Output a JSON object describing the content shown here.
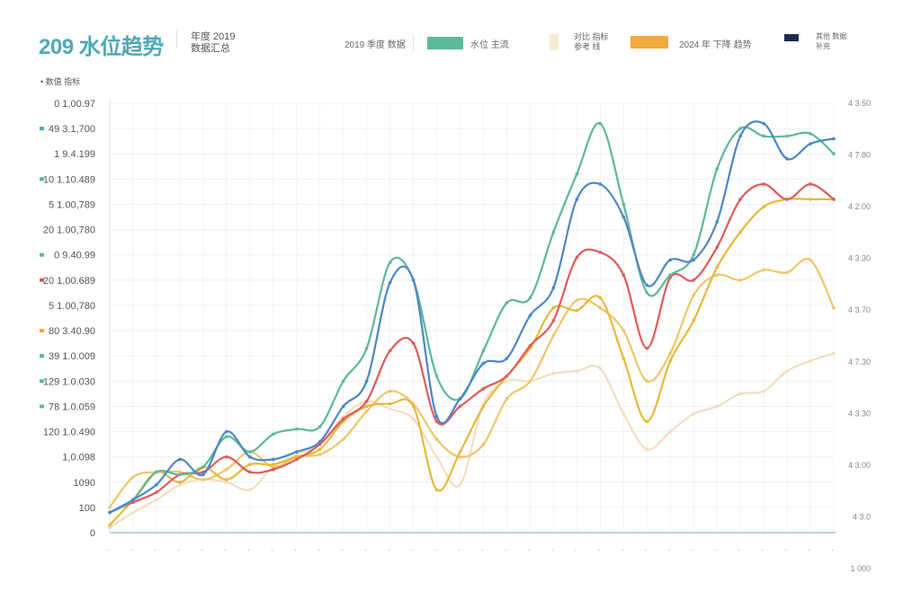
{
  "header": {
    "title": "209 水位趋势",
    "title_sub": "· · ·",
    "subtitle_line1": "年度 2019",
    "subtitle_line2": "数据汇总",
    "left_axis_title": "数值 指标"
  },
  "legend": [
    {
      "label": "2019 季度 数据",
      "color": "#ffffff"
    },
    {
      "label": "水位 主流",
      "color": "#5cb89a"
    },
    {
      "label": "对比 指标",
      "label2": "参考 线",
      "color": "#f6ecd0"
    },
    {
      "label": "2024 年 下降 趋势",
      "color": "#f2aa3b"
    },
    {
      "label": "其他 数据",
      "label2": "补充",
      "color": "#1f2a4a"
    }
  ],
  "chart_data": {
    "type": "line",
    "title": "",
    "xlabel": "",
    "ylabel": "",
    "ylim": [
      0,
      17
    ],
    "x": [
      1,
      2,
      3,
      4,
      5,
      6,
      7,
      8,
      9,
      10,
      11,
      12,
      13,
      14,
      15,
      16,
      17,
      18,
      19,
      20,
      21,
      22,
      23,
      24,
      25,
      26,
      27,
      28,
      29,
      30,
      31,
      32
    ],
    "x_tick_labels": [
      "·",
      "·",
      "·",
      "·",
      "·",
      "·",
      "·",
      "·",
      "·",
      "·",
      "·",
      "·",
      "·",
      "·",
      "·",
      "·",
      "·",
      "·",
      "·",
      "·",
      "·",
      "·",
      "·",
      "·",
      "·",
      "·",
      "·",
      "·",
      "·",
      "·",
      "·",
      "·"
    ],
    "left_tick_labels": [
      "0",
      "100",
      "1090",
      "1,0.098",
      "120 1.0.490",
      "78 1.0.059",
      "129 1.0.030",
      "39 1.0.009",
      "80 3.40.90",
      "5 1.00,780",
      "20 1.00.689",
      "0 9.40.99",
      "20 1.00,780",
      "5 1.00,789",
      "10 1.10.489",
      "1 9.4.199",
      "49 3.1,700",
      "0 1,00.97"
    ],
    "left_tick_markers": [
      "",
      "",
      "",
      "",
      "",
      "#5cb89a",
      "#5cb89a",
      "#5cb89a",
      "#f2aa3b",
      "",
      "#e05a5a",
      "#5cb89a",
      "",
      "",
      "#5cb89a",
      "",
      "#4fa9b5",
      ""
    ],
    "right_tick_labels": [
      "1 000",
      "4 3.0",
      "4 3.00",
      "4 3.30",
      "4 7.30",
      "4 3.70",
      "4 3.30",
      "4 2.00",
      "4 7.80",
      "4 3.50"
    ],
    "series": [
      {
        "color": "#5cb89a",
        "values": [
          0.8,
          1.3,
          2.4,
          2.3,
          2.6,
          3.8,
          3.2,
          3.9,
          4.1,
          4.2,
          6.0,
          7.3,
          10.7,
          10.0,
          6.2,
          5.3,
          7.2,
          9.1,
          9.3,
          11.9,
          14.2,
          16.2,
          13.0,
          9.5,
          10.2,
          11.0,
          14.4,
          16.0,
          15.7,
          15.7,
          15.8,
          15.0
        ]
      },
      {
        "color": "#4c86c6",
        "values": [
          0.8,
          1.3,
          1.9,
          2.9,
          2.3,
          4.0,
          3.0,
          2.9,
          3.2,
          3.6,
          5.0,
          6.0,
          9.9,
          10.0,
          4.6,
          5.3,
          6.7,
          6.9,
          8.6,
          9.7,
          13.2,
          13.8,
          12.5,
          9.8,
          10.8,
          10.8,
          12.3,
          15.7,
          16.2,
          14.8,
          15.4,
          15.6
        ]
      },
      {
        "color": "#e05a5a",
        "values": [
          0.8,
          1.2,
          1.6,
          2.3,
          2.4,
          3.0,
          2.4,
          2.5,
          2.9,
          3.5,
          4.5,
          5.2,
          7.2,
          7.5,
          4.4,
          5.0,
          5.7,
          6.2,
          7.4,
          8.4,
          10.9,
          11.1,
          10.2,
          7.3,
          10.1,
          10.0,
          11.3,
          13.2,
          13.8,
          13.2,
          13.8,
          13.2
        ]
      },
      {
        "color": "#e9b83a",
        "values": [
          0.3,
          1.3,
          2.4,
          2.0,
          2.6,
          2.1,
          2.7,
          2.7,
          3.0,
          3.3,
          4.4,
          5.0,
          5.1,
          5.0,
          1.7,
          3.2,
          5.0,
          6.2,
          7.3,
          8.9,
          8.8,
          9.3,
          6.9,
          4.4,
          6.8,
          8.4,
          10.5,
          11.9,
          12.9,
          13.2,
          13.2,
          13.2
        ]
      },
      {
        "color": "#eec66a",
        "values": [
          1.0,
          2.2,
          2.4,
          2.4,
          2.1,
          2.5,
          3.2,
          2.6,
          3.0,
          3.1,
          3.7,
          4.8,
          5.6,
          5.1,
          3.7,
          3.0,
          3.5,
          5.3,
          6.0,
          7.8,
          9.2,
          8.9,
          8.0,
          6.0,
          7.1,
          9.4,
          10.2,
          10.0,
          10.4,
          10.3,
          10.8,
          8.9
        ]
      },
      {
        "color": "#f3ddc0",
        "values": [
          0.2,
          0.8,
          1.3,
          1.9,
          2.1,
          2.0,
          1.7,
          2.6,
          3.1,
          3.5,
          4.6,
          5.2,
          4.9,
          4.5,
          3.0,
          1.9,
          5.1,
          6.0,
          6.0,
          6.3,
          6.4,
          6.5,
          4.7,
          3.3,
          4.0,
          4.7,
          5.0,
          5.5,
          5.6,
          6.4,
          6.8,
          7.1
        ]
      }
    ]
  }
}
